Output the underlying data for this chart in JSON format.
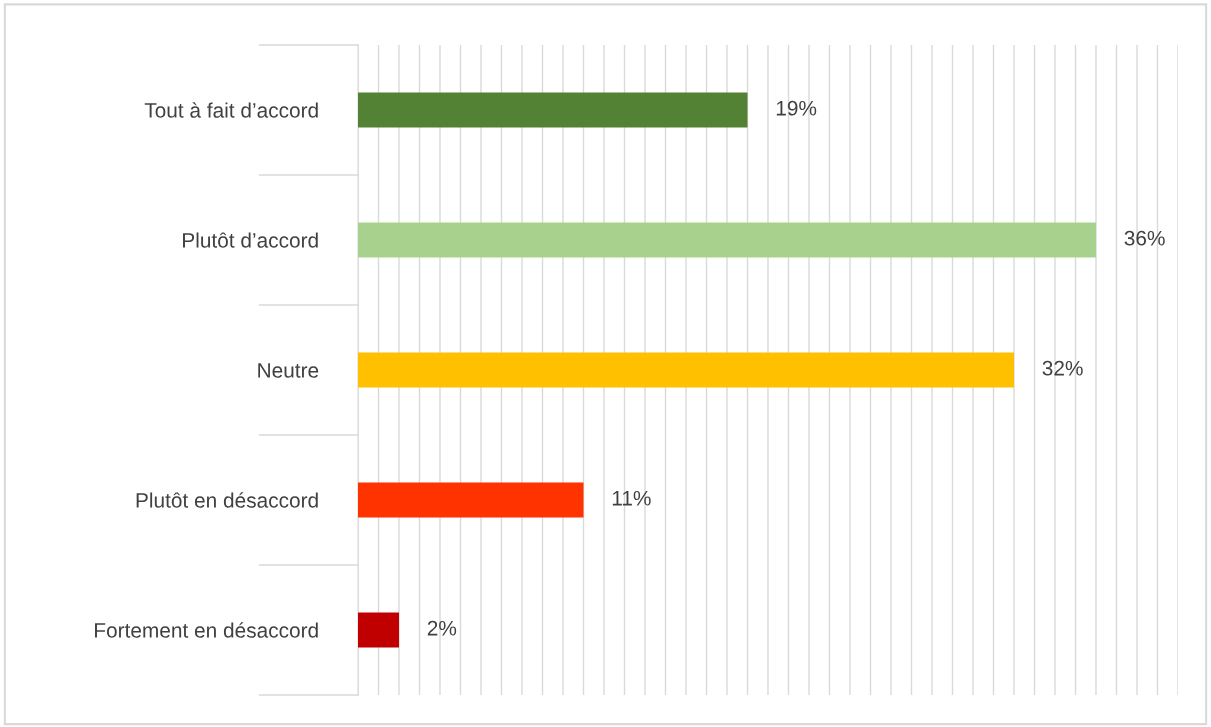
{
  "chart_data": {
    "type": "bar",
    "orientation": "horizontal",
    "categories": [
      "Tout à fait d’accord",
      "Plutôt d’accord",
      "Neutre",
      "Plutôt en désaccord",
      "Fortement en désaccord"
    ],
    "values": [
      19,
      36,
      32,
      11,
      2
    ],
    "colors": [
      "#548235",
      "#a9d18e",
      "#ffc000",
      "#ff3300",
      "#c00000"
    ],
    "value_labels": [
      "19%",
      "36%",
      "32%",
      "11%",
      "2%"
    ],
    "xlim": [
      0,
      40
    ],
    "xticks": [
      {
        "value": 0,
        "label": null
      },
      {
        "value": 1,
        "label": null
      },
      {
        "value": 2,
        "label": null
      },
      {
        "value": 3,
        "label": null
      },
      {
        "value": 4,
        "label": null
      },
      {
        "value": 5,
        "label": null
      },
      {
        "value": 6,
        "label": null
      },
      {
        "value": 7,
        "label": null
      },
      {
        "value": 8,
        "label": null
      },
      {
        "value": 9,
        "label": null
      },
      {
        "value": 10,
        "label": null
      },
      {
        "value": 11,
        "label": null
      },
      {
        "value": 12,
        "label": null
      },
      {
        "value": 13,
        "label": null
      },
      {
        "value": 14,
        "label": null
      },
      {
        "value": 15,
        "label": null
      },
      {
        "value": 16,
        "label": null
      },
      {
        "value": 17,
        "label": null
      },
      {
        "value": 18,
        "label": null
      },
      {
        "value": 19,
        "label": null
      },
      {
        "value": 20,
        "label": null
      },
      {
        "value": 21,
        "label": null
      },
      {
        "value": 22,
        "label": null
      },
      {
        "value": 23,
        "label": null
      },
      {
        "value": 24,
        "label": null
      },
      {
        "value": 25,
        "label": null
      },
      {
        "value": 26,
        "label": null
      },
      {
        "value": 27,
        "label": null
      },
      {
        "value": 28,
        "label": null
      },
      {
        "value": 29,
        "label": null
      },
      {
        "value": 30,
        "label": null
      },
      {
        "value": 31,
        "label": null
      },
      {
        "value": 32,
        "label": null
      },
      {
        "value": 33,
        "label": null
      },
      {
        "value": 34,
        "label": null
      },
      {
        "value": 35,
        "label": null
      },
      {
        "value": 36,
        "label": null
      },
      {
        "value": 37,
        "label": null
      },
      {
        "value": 38,
        "label": null
      },
      {
        "value": 39,
        "label": null
      },
      {
        "value": 40,
        "label": null
      }
    ],
    "grid": "x",
    "tick_labels": "y"
  }
}
